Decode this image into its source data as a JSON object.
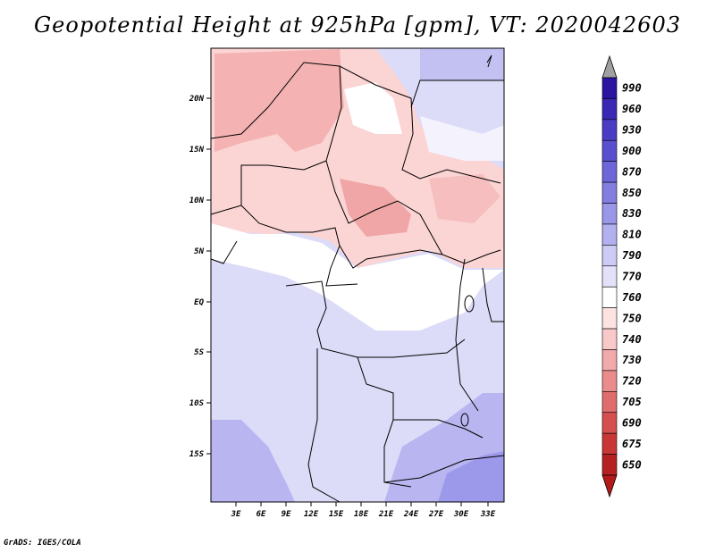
{
  "title": "Geopotential Height at 925hPa [gpm], VT: 2020042603",
  "footer": "GrADS: IGES/COLA",
  "map": {
    "lat_labels": [
      "20N",
      "15N",
      "10N",
      "5N",
      "EQ",
      "5S",
      "10S",
      "15S"
    ],
    "lon_labels": [
      "3E",
      "6E",
      "9E",
      "12E",
      "15E",
      "18E",
      "21E",
      "24E",
      "27E",
      "30E",
      "33E"
    ]
  },
  "colorbar": {
    "levels": [
      "990",
      "960",
      "930",
      "900",
      "870",
      "850",
      "830",
      "810",
      "790",
      "770",
      "760",
      "750",
      "740",
      "730",
      "720",
      "705",
      "690",
      "675",
      "650"
    ],
    "colors": [
      "#2a14a0",
      "#3a28b4",
      "#4a3cc4",
      "#5a50cf",
      "#6e66d8",
      "#837de0",
      "#9a96e8",
      "#b3b0ef",
      "#cdcbf5",
      "#e2e1f9",
      "#ffffff",
      "#fde2e2",
      "#f9c8c8",
      "#f2a9a9",
      "#ea8c8c",
      "#e06d6d",
      "#d64f4f",
      "#c93636",
      "#b52222"
    ],
    "top_arrow_color": "#a0a0a0",
    "bottom_arrow_color": "#b51a1a"
  }
}
